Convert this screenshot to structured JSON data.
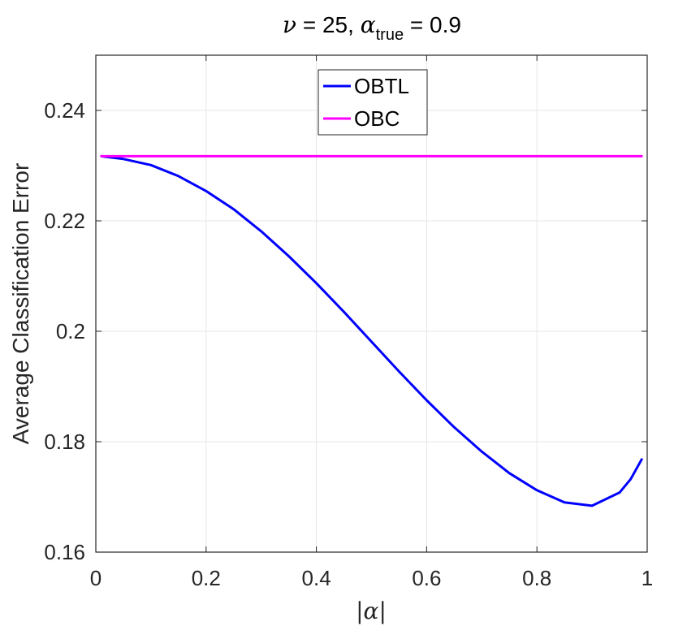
{
  "chart_data": {
    "type": "line",
    "title": {
      "nu_symbol": "ν",
      "nu_value": " = 25, ",
      "alpha_symbol": "α",
      "alpha_subscript": "true",
      "alpha_value": " = 0.9"
    },
    "xlabel": "|α|",
    "ylabel": "Average Classification Error",
    "xlim": [
      0,
      1
    ],
    "ylim": [
      0.16,
      0.25
    ],
    "xticks": [
      0,
      0.2,
      0.4,
      0.6,
      0.8,
      1
    ],
    "xtick_labels": [
      "0",
      "0.2",
      "0.4",
      "0.6",
      "0.8",
      "1"
    ],
    "yticks": [
      0.16,
      0.18,
      0.2,
      0.22,
      0.24
    ],
    "ytick_labels": [
      "0.16",
      "0.18",
      "0.2",
      "0.22",
      "0.24"
    ],
    "grid": true,
    "legend_position": "top-center",
    "series": [
      {
        "name": "OBTL",
        "color": "#0000ff",
        "x": [
          0.01,
          0.05,
          0.1,
          0.15,
          0.2,
          0.25,
          0.3,
          0.35,
          0.4,
          0.45,
          0.5,
          0.55,
          0.6,
          0.65,
          0.7,
          0.75,
          0.8,
          0.85,
          0.9,
          0.95,
          0.97,
          0.99
        ],
        "y": [
          0.2317,
          0.2312,
          0.2301,
          0.2281,
          0.2254,
          0.2221,
          0.2181,
          0.2136,
          0.2087,
          0.2035,
          0.1981,
          0.1927,
          0.1875,
          0.1826,
          0.1782,
          0.1743,
          0.1712,
          0.169,
          0.1684,
          0.1708,
          0.1732,
          0.1768
        ]
      },
      {
        "name": "OBC",
        "color": "#ff00ff",
        "x": [
          0.01,
          0.99
        ],
        "y": [
          0.2317,
          0.2317
        ]
      }
    ]
  }
}
